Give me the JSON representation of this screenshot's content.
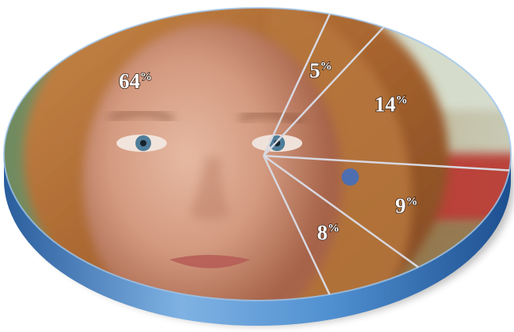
{
  "chart_data": {
    "type": "pie",
    "style": "3d-disc-with-photo-fill",
    "slices": [
      {
        "label": "64%",
        "value": 64
      },
      {
        "label": "5%",
        "value": 5
      },
      {
        "label": "14%",
        "value": 14
      },
      {
        "label": "9%",
        "value": 9
      },
      {
        "label": "8%",
        "value": 8
      }
    ],
    "unit_symbol": "%",
    "title": "",
    "legend": "none",
    "colors": {
      "rim_dark": "#1d4f8f",
      "rim_mid": "#3d7fc4",
      "rim_light": "#7fb2e3",
      "divider": "#d8d8e0"
    }
  }
}
